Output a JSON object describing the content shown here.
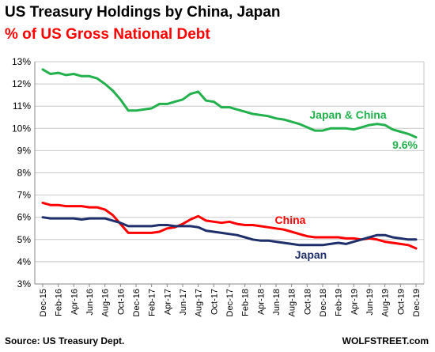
{
  "title": "US Treasury Holdings by China, Japan",
  "subtitle": "% of US Gross National Debt",
  "source": "Source: US Treasury Dept.",
  "brand": "WOLFSTREET.com",
  "chart_data": {
    "type": "line",
    "x": [
      "Dec-15",
      "Jan-16",
      "Feb-16",
      "Mar-16",
      "Apr-16",
      "May-16",
      "Jun-16",
      "Jul-16",
      "Aug-16",
      "Sep-16",
      "Oct-16",
      "Nov-16",
      "Dec-16",
      "Jan-17",
      "Feb-17",
      "Mar-17",
      "Apr-17",
      "May-17",
      "Jun-17",
      "Jul-17",
      "Aug-17",
      "Sep-17",
      "Oct-17",
      "Nov-17",
      "Dec-17",
      "Jan-18",
      "Feb-18",
      "Mar-18",
      "Apr-18",
      "May-18",
      "Jun-18",
      "Jul-18",
      "Aug-18",
      "Sep-18",
      "Oct-18",
      "Nov-18",
      "Dec-18",
      "Jan-19",
      "Feb-19",
      "Mar-19",
      "Apr-19",
      "May-19",
      "Jun-19",
      "Jul-19",
      "Aug-19",
      "Sep-19",
      "Oct-19",
      "Nov-19",
      "Dec-19"
    ],
    "xtick_labels": [
      "Dec-15",
      "Feb-16",
      "Apr-16",
      "Jun-16",
      "Aug-16",
      "Oct-16",
      "Dec-16",
      "Feb-17",
      "Apr-17",
      "Jun-17",
      "Aug-17",
      "Oct-17",
      "Dec-17",
      "Feb-18",
      "Apr-18",
      "Jun-18",
      "Aug-18",
      "Oct-18",
      "Dec-18",
      "Feb-19",
      "Apr-19",
      "Jun-19",
      "Aug-19",
      "Oct-19",
      "Dec-19"
    ],
    "yticks": [
      "3%",
      "4%",
      "5%",
      "6%",
      "7%",
      "8%",
      "9%",
      "10%",
      "11%",
      "12%",
      "13%"
    ],
    "ylim": [
      3,
      13
    ],
    "grid": true,
    "series": [
      {
        "name": "Japan & China",
        "color": "#22b14c",
        "values": [
          12.65,
          12.45,
          12.5,
          12.4,
          12.45,
          12.35,
          12.35,
          12.25,
          12.0,
          11.7,
          11.3,
          10.8,
          10.8,
          10.85,
          10.9,
          11.1,
          11.1,
          11.2,
          11.3,
          11.55,
          11.65,
          11.25,
          11.2,
          10.95,
          10.95,
          10.85,
          10.75,
          10.65,
          10.6,
          10.55,
          10.45,
          10.4,
          10.3,
          10.2,
          10.05,
          9.9,
          9.9,
          10.0,
          10.0,
          10.0,
          9.95,
          10.05,
          10.15,
          10.2,
          10.15,
          9.95,
          9.85,
          9.75,
          9.6
        ]
      },
      {
        "name": "China",
        "color": "#ff0000",
        "values": [
          6.65,
          6.55,
          6.55,
          6.5,
          6.5,
          6.5,
          6.45,
          6.45,
          6.35,
          6.1,
          5.7,
          5.3,
          5.3,
          5.3,
          5.3,
          5.35,
          5.5,
          5.55,
          5.7,
          5.9,
          6.05,
          5.85,
          5.8,
          5.75,
          5.8,
          5.7,
          5.65,
          5.65,
          5.6,
          5.55,
          5.5,
          5.45,
          5.35,
          5.25,
          5.15,
          5.1,
          5.1,
          5.1,
          5.1,
          5.05,
          5.05,
          5.0,
          5.05,
          5.0,
          4.9,
          4.85,
          4.8,
          4.75,
          4.6
        ]
      },
      {
        "name": "Japan",
        "color": "#1f2f6b",
        "values": [
          6.0,
          5.95,
          5.95,
          5.95,
          5.95,
          5.9,
          5.95,
          5.95,
          5.95,
          5.85,
          5.75,
          5.6,
          5.6,
          5.6,
          5.6,
          5.65,
          5.65,
          5.6,
          5.6,
          5.6,
          5.55,
          5.4,
          5.35,
          5.3,
          5.25,
          5.2,
          5.1,
          5.0,
          4.95,
          4.95,
          4.9,
          4.85,
          4.8,
          4.75,
          4.75,
          4.75,
          4.75,
          4.8,
          4.85,
          4.8,
          4.9,
          5.0,
          5.1,
          5.2,
          5.2,
          5.1,
          5.05,
          5.0,
          5.0
        ]
      }
    ],
    "annotations": [
      {
        "text": "Japan & China",
        "color": "#22b14c"
      },
      {
        "text": "9.6%",
        "color": "#22b14c"
      },
      {
        "text": "China",
        "color": "#ff0000"
      },
      {
        "text": "Japan",
        "color": "#1f2f6b"
      }
    ]
  }
}
